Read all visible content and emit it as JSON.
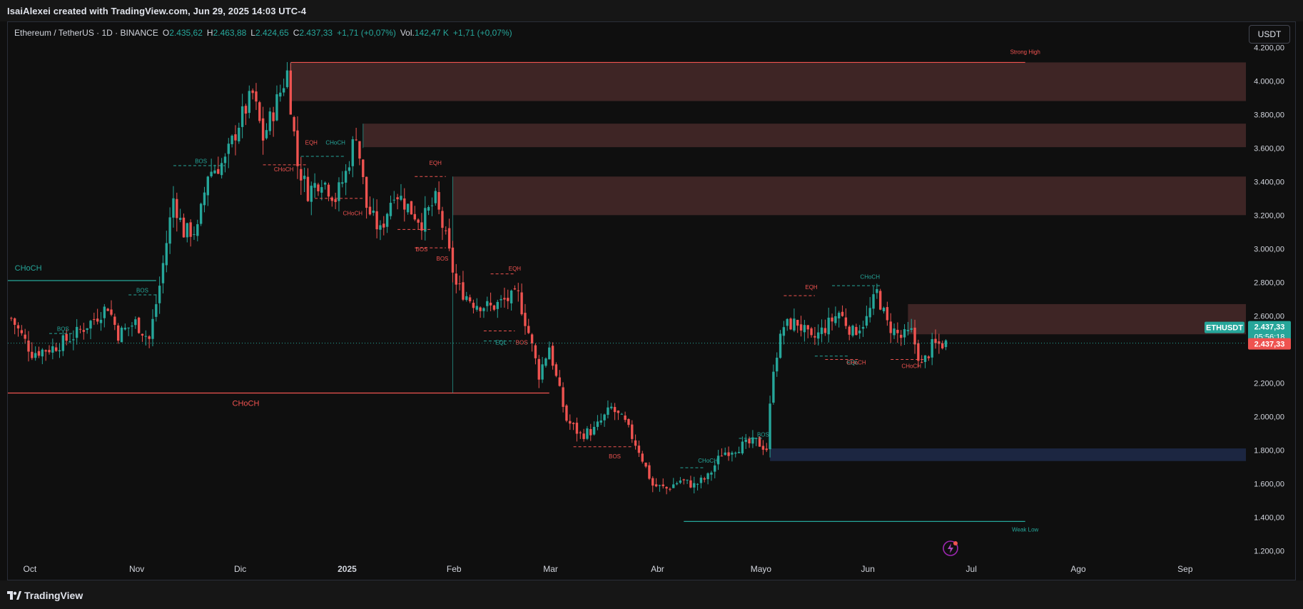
{
  "header": {
    "caption": "IsaiAlexei created with TradingView.com, Jun 29, 2025 14:03 UTC-4"
  },
  "legend": {
    "symbol": "Ethereum / TetherUS · 1D · BINANCE",
    "open_label": "O",
    "open": "2.435,62",
    "high_label": "H",
    "high": "2.463,88",
    "low_label": "L",
    "low": "2.424,65",
    "close_label": "C",
    "close": "2.437,33",
    "change": "+1,71 (+0,07%)",
    "vol_label": "Vol.",
    "vol": "142,47 K",
    "vol_change": "+1,71 (+0,07%)"
  },
  "toolbar": {
    "currency_button": "USDT"
  },
  "footer": {
    "brand": "TradingView"
  },
  "colors": {
    "up": "#26a69a",
    "down": "#ef5350",
    "zone": "#4a2a2a",
    "demand": "#1e2a4a",
    "bg": "#0f0f0f"
  },
  "chart_data": {
    "type": "candlestick",
    "ylim": [
      1100,
      4350
    ],
    "yticks": [
      {
        "v": 4200,
        "label": "4.200,00"
      },
      {
        "v": 4000,
        "label": "4.000,00"
      },
      {
        "v": 3800,
        "label": "3.800,00"
      },
      {
        "v": 3600,
        "label": "3.600,00"
      },
      {
        "v": 3400,
        "label": "3.400,00"
      },
      {
        "v": 3200,
        "label": "3.200,00"
      },
      {
        "v": 3000,
        "label": "3.000,00"
      },
      {
        "v": 2800,
        "label": "2.800,00"
      },
      {
        "v": 2600,
        "label": "2.600,00"
      },
      {
        "v": 2200,
        "label": "2.200,00"
      },
      {
        "v": 2000,
        "label": "2.000,00"
      },
      {
        "v": 1800,
        "label": "1.800,00"
      },
      {
        "v": 1600,
        "label": "1.600,00"
      },
      {
        "v": 1400,
        "label": "1.400,00"
      },
      {
        "v": 1200,
        "label": "1.200,00"
      }
    ],
    "xticks": [
      {
        "label": "Oct",
        "day": 0
      },
      {
        "label": "Nov",
        "day": 31
      },
      {
        "label": "Dic",
        "day": 61
      },
      {
        "label": "2025",
        "day": 92,
        "bold": true
      },
      {
        "label": "Feb",
        "day": 123
      },
      {
        "label": "Mar",
        "day": 151
      },
      {
        "label": "Abr",
        "day": 182
      },
      {
        "label": "Mayo",
        "day": 212
      },
      {
        "label": "Jun",
        "day": 243
      },
      {
        "label": "Jul",
        "day": 273
      },
      {
        "label": "Ago",
        "day": 304
      },
      {
        "label": "Sep",
        "day": 335
      }
    ],
    "x_range_days": [
      -1,
      358
    ],
    "current_day": 271,
    "last_price": {
      "ticker": "ETHUSDT",
      "price": 2437.33,
      "price_label": "2.437,33",
      "countdown": "05:56:18",
      "price_label_2": "2.437,33"
    },
    "zones": [
      {
        "type": "supply",
        "from_day": 81,
        "to_day": 358,
        "low": 3880,
        "high": 4110
      },
      {
        "type": "supply",
        "from_day": 102,
        "to_day": 358,
        "low": 3605,
        "high": 3745
      },
      {
        "type": "supply",
        "from_day": 128,
        "to_day": 358,
        "low": 3200,
        "high": 3430
      },
      {
        "type": "supply",
        "from_day": 260,
        "to_day": 358,
        "low": 2490,
        "high": 2670
      },
      {
        "type": "demand",
        "from_day": 220,
        "to_day": 358,
        "low": 1735,
        "high": 1810
      }
    ],
    "levels": [
      {
        "price": 4110,
        "from_day": 81,
        "to_day": 294,
        "color": "down",
        "label": "Strong High",
        "label_day": 294,
        "label_pos": "above-end"
      },
      {
        "price": 1375,
        "from_day": 195,
        "to_day": 294,
        "color": "up",
        "label": "Weak Low",
        "label_day": 294,
        "label_pos": "below-end"
      },
      {
        "price": 2810,
        "from_day": -1,
        "to_day": 42,
        "color": "up",
        "label": "CHoCH",
        "label_day": 1,
        "label_pos": "above-start"
      },
      {
        "price": 2140,
        "from_day": -1,
        "to_day": 156,
        "color": "down",
        "label": "CHoCH",
        "label_day": 68,
        "label_pos": "below-mid"
      }
    ],
    "structure_labels": [
      {
        "text": "BOS",
        "day": 15,
        "price": 2510,
        "color": "up"
      },
      {
        "text": "BOS",
        "day": 38,
        "price": 2740,
        "color": "up"
      },
      {
        "text": "BOS",
        "day": 55,
        "price": 3510,
        "color": "up"
      },
      {
        "text": "EQH",
        "day": 87,
        "price": 3620,
        "color": "down"
      },
      {
        "text": "CHoCH",
        "day": 94,
        "price": 3620,
        "color": "up"
      },
      {
        "text": "CHoCH",
        "day": 79,
        "price": 3460,
        "color": "down"
      },
      {
        "text": "CHoCH",
        "day": 99,
        "price": 3200,
        "color": "down"
      },
      {
        "text": "EQH",
        "day": 123,
        "price": 3500,
        "color": "down"
      },
      {
        "text": "BOS",
        "day": 119,
        "price": 2985,
        "color": "down"
      },
      {
        "text": "BOS",
        "day": 125,
        "price": 2930,
        "color": "down"
      },
      {
        "text": "EQH",
        "day": 146,
        "price": 2870,
        "color": "down"
      },
      {
        "text": "EQL",
        "day": 142,
        "price": 2430,
        "color": "up"
      },
      {
        "text": "BOS",
        "day": 148,
        "price": 2430,
        "color": "down"
      },
      {
        "text": "BOS",
        "day": 175,
        "price": 1750,
        "color": "down"
      },
      {
        "text": "CHoCH",
        "day": 202,
        "price": 1725,
        "color": "up"
      },
      {
        "text": "BOS",
        "day": 218,
        "price": 1880,
        "color": "up"
      },
      {
        "text": "EQH",
        "day": 232,
        "price": 2760,
        "color": "down"
      },
      {
        "text": "CHoCH",
        "day": 249,
        "price": 2820,
        "color": "up"
      },
      {
        "text": "EQL",
        "day": 244,
        "price": 2310,
        "color": "up"
      },
      {
        "text": "CHoCH",
        "day": 245,
        "price": 2310,
        "color": "down"
      },
      {
        "text": "CHoCH",
        "day": 261,
        "price": 2290,
        "color": "down"
      }
    ],
    "dashed_segments": [
      {
        "from_day": 11,
        "to_day": 18,
        "price": 2495,
        "color": "up"
      },
      {
        "from_day": 34,
        "to_day": 42,
        "price": 2725,
        "color": "up"
      },
      {
        "from_day": 47,
        "to_day": 62,
        "price": 3495,
        "color": "up"
      },
      {
        "from_day": 73,
        "to_day": 86,
        "price": 3500,
        "color": "down"
      },
      {
        "from_day": 84,
        "to_day": 97,
        "price": 3550,
        "color": "up"
      },
      {
        "from_day": 88,
        "to_day": 102,
        "price": 3300,
        "color": "down"
      },
      {
        "from_day": 112,
        "to_day": 122,
        "price": 3115,
        "color": "down"
      },
      {
        "from_day": 117,
        "to_day": 126,
        "price": 3005,
        "color": "down"
      },
      {
        "from_day": 117,
        "to_day": 126,
        "price": 3430,
        "color": "down"
      },
      {
        "from_day": 139,
        "to_day": 146,
        "price": 2850,
        "color": "down"
      },
      {
        "from_day": 137,
        "to_day": 146,
        "price": 2450,
        "color": "up"
      },
      {
        "from_day": 137,
        "to_day": 146,
        "price": 2510,
        "color": "down"
      },
      {
        "from_day": 163,
        "to_day": 180,
        "price": 1820,
        "color": "down"
      },
      {
        "from_day": 194,
        "to_day": 201,
        "price": 1695,
        "color": "up"
      },
      {
        "from_day": 211,
        "to_day": 218,
        "price": 1870,
        "color": "up"
      },
      {
        "from_day": 224,
        "to_day": 233,
        "price": 2720,
        "color": "down"
      },
      {
        "from_day": 238,
        "to_day": 252,
        "price": 2780,
        "color": "up"
      },
      {
        "from_day": 233,
        "to_day": 243,
        "price": 2360,
        "color": "up"
      },
      {
        "from_day": 236,
        "to_day": 246,
        "price": 2340,
        "color": "down"
      },
      {
        "from_day": 255,
        "to_day": 265,
        "price": 2340,
        "color": "down"
      }
    ],
    "anchors": [
      {
        "day": -1,
        "price": 2620
      },
      {
        "day": 6,
        "price": 2380
      },
      {
        "day": 12,
        "price": 2410
      },
      {
        "day": 18,
        "price": 2480
      },
      {
        "day": 24,
        "price": 2580
      },
      {
        "day": 28,
        "price": 2660
      },
      {
        "day": 31,
        "price": 2490
      },
      {
        "day": 36,
        "price": 2560
      },
      {
        "day": 40,
        "price": 2460
      },
      {
        "day": 43,
        "price": 2780
      },
      {
        "day": 47,
        "price": 3300
      },
      {
        "day": 50,
        "price": 3100
      },
      {
        "day": 54,
        "price": 3110
      },
      {
        "day": 57,
        "price": 3450
      },
      {
        "day": 62,
        "price": 3520
      },
      {
        "day": 66,
        "price": 3750
      },
      {
        "day": 70,
        "price": 3920
      },
      {
        "day": 73,
        "price": 3660
      },
      {
        "day": 76,
        "price": 3820
      },
      {
        "day": 80,
        "price": 4050
      },
      {
        "day": 83,
        "price": 3500
      },
      {
        "day": 86,
        "price": 3340
      },
      {
        "day": 90,
        "price": 3420
      },
      {
        "day": 94,
        "price": 3300
      },
      {
        "day": 97,
        "price": 3450
      },
      {
        "day": 100,
        "price": 3700
      },
      {
        "day": 103,
        "price": 3250
      },
      {
        "day": 107,
        "price": 3100
      },
      {
        "day": 111,
        "price": 3350
      },
      {
        "day": 115,
        "price": 3250
      },
      {
        "day": 119,
        "price": 3160
      },
      {
        "day": 123,
        "price": 3290
      },
      {
        "day": 126,
        "price": 3060
      },
      {
        "day": 129,
        "price": 2780
      },
      {
        "day": 134,
        "price": 2680
      },
      {
        "day": 139,
        "price": 2650
      },
      {
        "day": 143,
        "price": 2690
      },
      {
        "day": 147,
        "price": 2720
      },
      {
        "day": 150,
        "price": 2500
      },
      {
        "day": 153,
        "price": 2250
      },
      {
        "day": 156,
        "price": 2420
      },
      {
        "day": 158,
        "price": 2230
      },
      {
        "day": 161,
        "price": 1980
      },
      {
        "day": 165,
        "price": 1890
      },
      {
        "day": 169,
        "price": 1920
      },
      {
        "day": 174,
        "price": 2050
      },
      {
        "day": 178,
        "price": 1960
      },
      {
        "day": 182,
        "price": 1800
      },
      {
        "day": 186,
        "price": 1590
      },
      {
        "day": 190,
        "price": 1570
      },
      {
        "day": 194,
        "price": 1620
      },
      {
        "day": 198,
        "price": 1590
      },
      {
        "day": 202,
        "price": 1640
      },
      {
        "day": 206,
        "price": 1780
      },
      {
        "day": 211,
        "price": 1820
      },
      {
        "day": 216,
        "price": 1850
      },
      {
        "day": 219,
        "price": 1810
      },
      {
        "day": 221,
        "price": 2300
      },
      {
        "day": 224,
        "price": 2540
      },
      {
        "day": 228,
        "price": 2560
      },
      {
        "day": 232,
        "price": 2450
      },
      {
        "day": 236,
        "price": 2530
      },
      {
        "day": 240,
        "price": 2620
      },
      {
        "day": 244,
        "price": 2500
      },
      {
        "day": 248,
        "price": 2580
      },
      {
        "day": 251,
        "price": 2740
      },
      {
        "day": 254,
        "price": 2550
      },
      {
        "day": 258,
        "price": 2470
      },
      {
        "day": 261,
        "price": 2500
      },
      {
        "day": 264,
        "price": 2300
      },
      {
        "day": 267,
        "price": 2420
      },
      {
        "day": 271,
        "price": 2437
      }
    ]
  }
}
